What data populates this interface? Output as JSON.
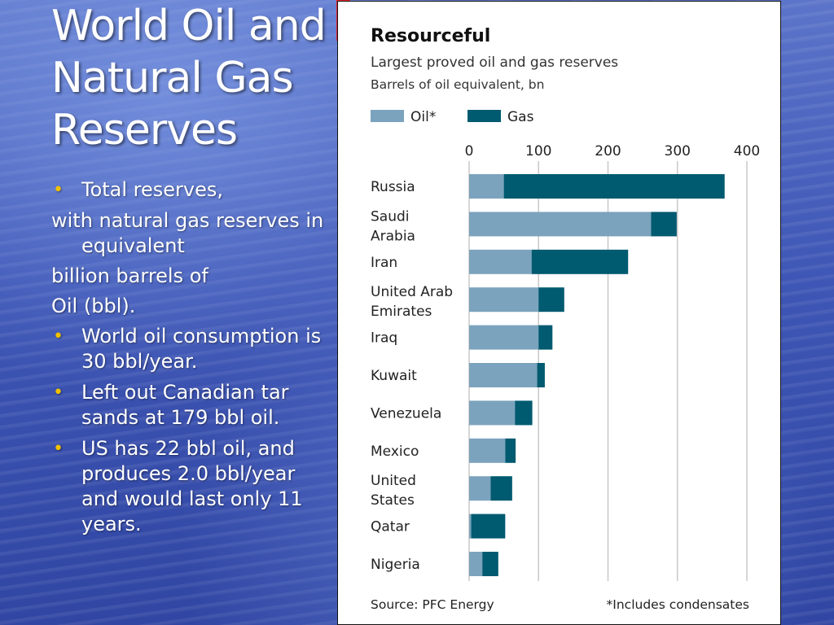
{
  "slide": {
    "title_lines": [
      "World Oil and",
      "Natural Gas",
      "Reserves"
    ],
    "body": [
      {
        "bullet": true,
        "text": "Total reserves,"
      },
      {
        "bullet": false,
        "text": "with natural gas reserves in equivalent"
      },
      {
        "bullet": false,
        "text": "billion barrels of"
      },
      {
        "bullet": false,
        "text": "Oil (bbl)."
      },
      {
        "bullet": true,
        "text": "World oil consumption is 30 bbl/year."
      },
      {
        "bullet": true,
        "text": "Left out Canadian tar sands at 179 bbl oil."
      },
      {
        "bullet": true,
        "text": "US has 22 bbl oil, and produces 2.0 bbl/year and would last only 11 years."
      }
    ],
    "bullet_glyph": "•",
    "accent_color": "#e8232a"
  },
  "chart_data": {
    "type": "bar",
    "orientation": "horizontal",
    "stacked": true,
    "title": "Resourceful",
    "subtitle": "Largest proved oil and gas reserves",
    "unit_label": "Barrels of oil equivalent, bn",
    "categories": [
      [
        "Russia"
      ],
      [
        "Saudi",
        "Arabia"
      ],
      [
        "Iran"
      ],
      [
        "United Arab",
        "Emirates"
      ],
      [
        "Iraq"
      ],
      [
        "Kuwait"
      ],
      [
        "Venezuela"
      ],
      [
        "Mexico"
      ],
      [
        "United",
        "States"
      ],
      [
        "Qatar"
      ],
      [
        "Nigeria"
      ]
    ],
    "series": [
      {
        "name": "Oil*",
        "color": "#7ba3bd",
        "values": [
          50,
          262,
          90,
          100,
          100,
          98,
          66,
          52,
          31,
          3,
          19
        ]
      },
      {
        "name": "Gas",
        "color": "#005a70",
        "values": [
          318,
          37,
          139,
          37,
          20,
          11,
          25,
          15,
          31,
          49,
          23
        ]
      }
    ],
    "xlim": [
      0,
      400
    ],
    "xticks": [
      "0",
      "100",
      "200",
      "300",
      "400"
    ],
    "xtick_values": [
      0,
      100,
      200,
      300,
      400
    ],
    "grid": true,
    "legend_position": "top-left",
    "source": "Source: PFC Energy",
    "footnote": "*Includes condensates"
  }
}
